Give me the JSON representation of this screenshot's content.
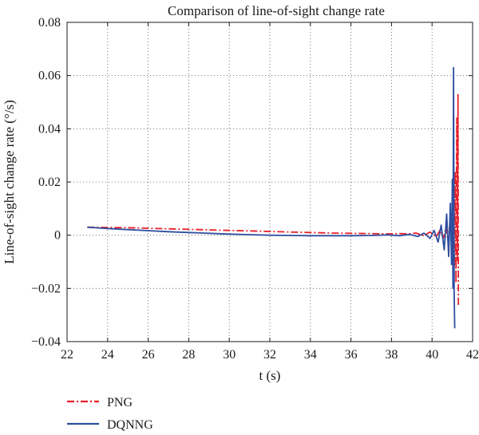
{
  "chart_data": {
    "type": "line",
    "title": "Comparison of line-of-sight change rate",
    "xlabel": "t (s)",
    "ylabel": "Line-of-sight change rate (°/s)",
    "xlim": [
      22,
      42
    ],
    "ylim": [
      -0.04,
      0.08
    ],
    "x_ticks": [
      22,
      24,
      26,
      28,
      30,
      32,
      34,
      36,
      38,
      40,
      42
    ],
    "y_ticks": [
      -0.04,
      -0.02,
      0,
      0.02,
      0.04,
      0.06,
      0.08
    ],
    "x_tick_labels": [
      "22",
      "24",
      "26",
      "28",
      "30",
      "32",
      "34",
      "36",
      "38",
      "40",
      "42"
    ],
    "y_tick_labels": [
      "−0.04",
      "−0.02",
      "0",
      "0.02",
      "0.04",
      "0.06",
      "0.08"
    ],
    "grid": true,
    "legend_position": "below",
    "series": [
      {
        "name": "PNG",
        "color": "#e8202a",
        "line_style": "dash-dot",
        "x": [
          23.0,
          24.0,
          25.0,
          26.0,
          27.0,
          28.0,
          29.0,
          30.0,
          31.0,
          32.0,
          33.0,
          34.0,
          35.0,
          36.0,
          37.0,
          37.8,
          38.4,
          38.8,
          39.2,
          39.6,
          39.9,
          40.2,
          40.4,
          40.55,
          40.7,
          40.8,
          40.9,
          40.98,
          41.05,
          41.1,
          41.14,
          41.18,
          41.22,
          41.25,
          41.28,
          41.3
        ],
        "y": [
          0.003,
          0.0029,
          0.0028,
          0.0026,
          0.0024,
          0.0022,
          0.002,
          0.0018,
          0.0016,
          0.0014,
          0.0012,
          0.001,
          0.0008,
          0.0007,
          0.0006,
          0.0005,
          0.0006,
          0.0005,
          0.0008,
          -0.0002,
          0.0012,
          -0.0006,
          0.002,
          -0.0012,
          0.003,
          -0.003,
          0.006,
          -0.006,
          0.012,
          -0.012,
          0.024,
          -0.018,
          0.044,
          -0.01,
          0.053,
          -0.027
        ]
      },
      {
        "name": "DQNNG",
        "color": "#2e4fa0",
        "line_style": "solid",
        "x": [
          23.0,
          24.0,
          25.0,
          26.0,
          27.0,
          28.0,
          29.0,
          30.0,
          31.0,
          32.0,
          33.0,
          34.0,
          35.0,
          36.0,
          37.0,
          37.8,
          38.4,
          38.9,
          39.3,
          39.6,
          39.9,
          40.1,
          40.3,
          40.45,
          40.6,
          40.72,
          40.82,
          40.9,
          40.96,
          41.0,
          41.03,
          41.06,
          41.09,
          41.12
        ],
        "y": [
          0.003,
          0.0025,
          0.0021,
          0.0017,
          0.0013,
          0.001,
          0.0007,
          0.0004,
          0.0002,
          0.0,
          -0.0001,
          -0.0002,
          -0.0002,
          -0.0002,
          -0.0001,
          0.0001,
          -0.0002,
          0.0003,
          -0.0005,
          0.0008,
          -0.0012,
          0.0018,
          -0.0026,
          0.0038,
          -0.0055,
          0.008,
          -0.008,
          0.012,
          -0.011,
          0.021,
          -0.02,
          0.063,
          -0.022,
          -0.035
        ]
      }
    ]
  }
}
